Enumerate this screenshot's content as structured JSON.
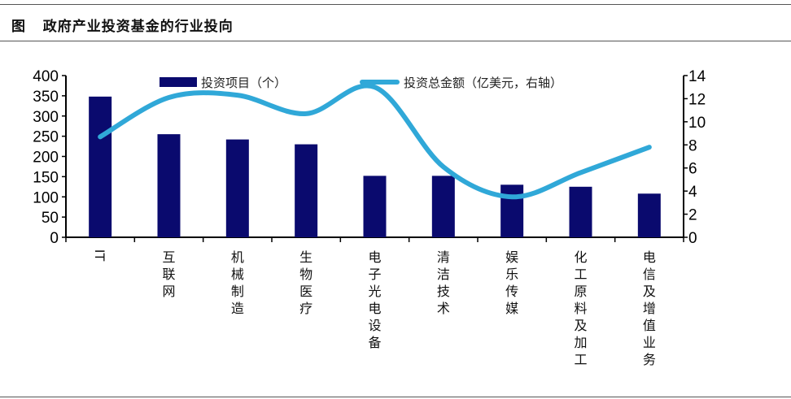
{
  "title": "图   政府产业投资基金的行业投向",
  "chart_data": {
    "type": "bar+line",
    "title": "政府产业投资基金的行业投向",
    "categories": [
      "IT",
      "互联网",
      "机械制造",
      "生物医疗",
      "电子光电设备",
      "清洁技术",
      "娱乐传媒",
      "化工原料及加工",
      "电信及增值业务"
    ],
    "series": [
      {
        "name": "投资项目（个）",
        "type": "bar",
        "axis": "left",
        "color": "#0a0a6e",
        "values": [
          348,
          255,
          242,
          230,
          152,
          152,
          130,
          125,
          108
        ]
      },
      {
        "name": "投资总金额（亿美元，右轴）",
        "type": "line",
        "axis": "right",
        "color": "#30a8d8",
        "smooth": true,
        "values": [
          8.7,
          12.1,
          12.3,
          10.7,
          13.0,
          6.1,
          3.5,
          5.6,
          7.8
        ]
      }
    ],
    "left_axis": {
      "ylim": [
        0,
        400
      ],
      "ticks": [
        0,
        50,
        100,
        150,
        200,
        250,
        300,
        350,
        400
      ]
    },
    "right_axis": {
      "ylim": [
        0,
        14
      ],
      "ticks": [
        0,
        2,
        4,
        6,
        8,
        10,
        12,
        14
      ]
    },
    "grid": false,
    "legend": "top"
  }
}
